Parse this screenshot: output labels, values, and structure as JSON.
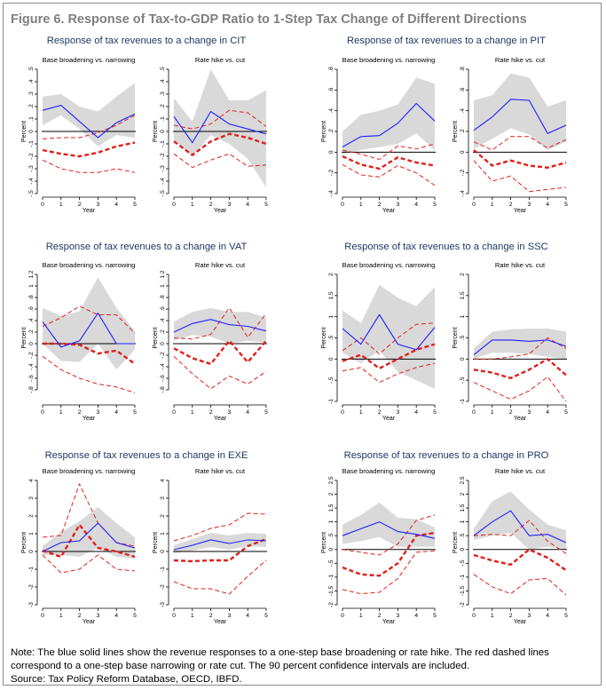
{
  "figure": {
    "title": "Figure 6. Response of Tax-to-GDP Ratio to 1-Step Tax Change of Different Directions",
    "note": "Note: The blue solid lines show the revenue responses to a one-step base broadening or rate hike. The red dashed lines correspond to a one-step base narrowing or rate cut. The 90 percent confidence intervals are included.",
    "source": "Source: Tax Policy Reform Database, OECD, IBFD."
  },
  "colors": {
    "blue_line": "#1f1fff",
    "red_line": "#e0201b",
    "ci_band": "#d9d9d9",
    "zero_line": "#000000",
    "title_text": "#1f3864"
  },
  "chart_data": [
    {
      "type": "line",
      "tax": "CIT",
      "title": "Response of tax revenues to a change in CIT",
      "subtitle": "Base broadening vs. narrowing",
      "xlabel": "Year",
      "ylabel": "Percent",
      "x": [
        0,
        1,
        2,
        3,
        4,
        5
      ],
      "ylim": [
        -0.5,
        0.5
      ],
      "yticks": [
        -0.5,
        -0.4,
        -0.3,
        -0.2,
        -0.1,
        0,
        0.1,
        0.2,
        0.3,
        0.4,
        0.5
      ],
      "yticklabels": [
        "-.5",
        "-.4",
        "-.3",
        "-.2",
        "-.1",
        "0",
        ".1",
        ".2",
        ".3",
        ".4",
        ".5"
      ],
      "blue": [
        0.17,
        0.21,
        0.08,
        -0.05,
        0.07,
        0.14
      ],
      "blue_ci": {
        "lower": [
          0.05,
          0.13,
          0.02,
          -0.12,
          -0.03,
          -0.05
        ],
        "upper": [
          0.28,
          0.3,
          0.2,
          0.16,
          0.28,
          0.39
        ]
      },
      "red": [
        -0.15,
        -0.18,
        -0.2,
        -0.17,
        -0.12,
        -0.09
      ],
      "red_ci": {
        "lower": [
          -0.23,
          -0.3,
          -0.33,
          -0.33,
          -0.3,
          -0.33
        ],
        "upper": [
          -0.06,
          -0.05,
          -0.05,
          -0.01,
          0.05,
          0.13
        ]
      }
    },
    {
      "type": "line",
      "tax": "CIT",
      "title": "",
      "subtitle": "Rate hike vs. cut",
      "xlabel": "Year",
      "ylabel": "Percent",
      "x": [
        0,
        1,
        2,
        3,
        4,
        5
      ],
      "ylim": [
        -0.5,
        0.5
      ],
      "yticks": [
        -0.5,
        -0.4,
        -0.3,
        -0.2,
        -0.1,
        0,
        0.1,
        0.2,
        0.3,
        0.4,
        0.5
      ],
      "yticklabels": [
        "-.5",
        "-.4",
        "-.3",
        "-.2",
        "-.1",
        "0",
        ".1",
        ".2",
        ".3",
        ".4",
        ".5"
      ],
      "blue": [
        0.12,
        -0.09,
        0.16,
        0.06,
        0.02,
        -0.02
      ],
      "blue_ci": {
        "lower": [
          -0.07,
          -0.2,
          -0.03,
          -0.1,
          -0.22,
          -0.45
        ],
        "upper": [
          0.27,
          0.08,
          0.5,
          0.25,
          0.25,
          0.33
        ]
      },
      "red": [
        -0.08,
        -0.19,
        -0.08,
        -0.02,
        -0.05,
        -0.1
      ],
      "red_ci": {
        "lower": [
          -0.18,
          -0.29,
          -0.23,
          -0.18,
          -0.28,
          -0.27
        ],
        "upper": [
          0.05,
          0.02,
          0.06,
          0.17,
          0.15,
          0.04
        ]
      }
    },
    {
      "type": "line",
      "tax": "PIT",
      "title": "Response of tax revenues to a change in PIT",
      "subtitle": "Base broadening vs. narrowing",
      "xlabel": "Year",
      "ylabel": "Percent",
      "x": [
        0,
        1,
        2,
        3,
        4,
        5
      ],
      "ylim": [
        -0.4,
        0.8
      ],
      "yticks": [
        -0.4,
        -0.2,
        0,
        0.2,
        0.4,
        0.6,
        0.8
      ],
      "yticklabels": [
        "-.4",
        "-.2",
        "0",
        ".2",
        ".4",
        ".6",
        ".8"
      ],
      "blue": [
        0.05,
        0.15,
        0.16,
        0.28,
        0.47,
        0.3
      ],
      "blue_ci": {
        "lower": [
          -0.02,
          0.02,
          0.05,
          0.08,
          0.18,
          0.02
        ],
        "upper": [
          0.2,
          0.36,
          0.4,
          0.46,
          0.72,
          0.66
        ]
      },
      "red": [
        -0.04,
        -0.12,
        -0.16,
        -0.05,
        -0.1,
        -0.13
      ],
      "red_ci": {
        "lower": [
          -0.12,
          -0.22,
          -0.24,
          -0.13,
          -0.2,
          -0.32
        ],
        "upper": [
          0.02,
          -0.02,
          -0.07,
          0.06,
          0.03,
          0.08
        ]
      }
    },
    {
      "type": "line",
      "tax": "PIT",
      "title": "",
      "subtitle": "Rate hike vs. cut",
      "xlabel": "Year",
      "ylabel": "Percent",
      "x": [
        0,
        1,
        2,
        3,
        4,
        5
      ],
      "ylim": [
        -0.4,
        0.8
      ],
      "yticks": [
        -0.4,
        -0.2,
        0,
        0.2,
        0.4,
        0.6,
        0.8
      ],
      "yticklabels": [
        "-.4",
        "-.2",
        "0",
        ".2",
        ".4",
        ".6",
        ".8"
      ],
      "blue": [
        0.21,
        0.34,
        0.51,
        0.5,
        0.18,
        0.26
      ],
      "blue_ci": {
        "lower": [
          0.03,
          0.13,
          0.23,
          0.17,
          0.02,
          0.1
        ],
        "upper": [
          0.5,
          0.55,
          0.76,
          0.72,
          0.44,
          0.5
        ]
      },
      "red": [
        0.02,
        -0.13,
        -0.08,
        -0.13,
        -0.15,
        -0.1
      ],
      "red_ci": {
        "lower": [
          -0.08,
          -0.28,
          -0.23,
          -0.38,
          -0.36,
          -0.34
        ],
        "upper": [
          0.1,
          0.02,
          0.15,
          0.15,
          0.04,
          0.12
        ]
      }
    },
    {
      "type": "line",
      "tax": "VAT",
      "title": "Response of tax revenues to a change in VAT",
      "subtitle": "Base broadening vs. narrowing",
      "xlabel": "Year",
      "ylabel": "Percent",
      "x": [
        0,
        1,
        2,
        3,
        4,
        5
      ],
      "ylim": [
        -1.0,
        1.2
      ],
      "yticks": [
        -0.8,
        -0.6,
        -0.4,
        -0.2,
        0,
        0.2,
        0.4,
        0.6,
        0.8,
        1.0,
        1.2
      ],
      "yticklabels": [
        "-.8",
        "-.6",
        "-.4",
        "-.2",
        "0",
        ".2",
        ".4",
        ".6",
        ".8",
        "1",
        "1.2"
      ],
      "blue": [
        0.38,
        -0.06,
        0.05,
        0.53,
        0.0,
        0.0
      ],
      "blue_ci": {
        "lower": [
          0.0,
          -0.3,
          -0.32,
          0.0,
          -0.45,
          -0.1
        ],
        "upper": [
          0.62,
          0.48,
          0.56,
          1.15,
          0.62,
          0.22
        ]
      },
      "red": [
        0.0,
        0.0,
        -0.02,
        -0.17,
        -0.12,
        -0.35
      ],
      "red_ci": {
        "lower": [
          -0.22,
          -0.45,
          -0.6,
          -0.7,
          -0.75,
          -0.85
        ],
        "upper": [
          0.3,
          0.45,
          0.65,
          0.5,
          0.5,
          0.18
        ]
      }
    },
    {
      "type": "line",
      "tax": "VAT",
      "title": "",
      "subtitle": "Rate hike vs. cut",
      "xlabel": "Year",
      "ylabel": "Percent",
      "x": [
        0,
        1,
        2,
        3,
        4,
        5
      ],
      "ylim": [
        -1.0,
        1.2
      ],
      "yticks": [
        -0.8,
        -0.6,
        -0.4,
        -0.2,
        0,
        0.2,
        0.4,
        0.6,
        0.8,
        1.0,
        1.2
      ],
      "yticklabels": [
        "-.8",
        "-.6",
        "-.4",
        "-.2",
        "0",
        ".2",
        ".4",
        ".6",
        ".8",
        "1",
        "1.2"
      ],
      "blue": [
        0.2,
        0.35,
        0.42,
        0.33,
        0.3,
        0.22
      ],
      "blue_ci": {
        "lower": [
          0.05,
          0.15,
          0.12,
          0.0,
          0.05,
          0.02
        ],
        "upper": [
          0.38,
          0.55,
          0.62,
          0.55,
          0.55,
          0.45
        ]
      },
      "red": [
        -0.08,
        -0.25,
        -0.35,
        0.05,
        -0.32,
        0.05
      ],
      "red_ci": {
        "lower": [
          -0.22,
          -0.52,
          -0.78,
          -0.56,
          -0.7,
          -0.48
        ],
        "upper": [
          0.1,
          0.08,
          0.16,
          0.62,
          0.11,
          0.52
        ]
      }
    },
    {
      "type": "line",
      "tax": "SSC",
      "title": "Response of tax revenues to a change in SSC",
      "subtitle": "Base broadening vs. narrowing",
      "xlabel": "Year",
      "ylabel": "Percent",
      "x": [
        0,
        1,
        2,
        3,
        4,
        5
      ],
      "ylim": [
        -1.0,
        2.0
      ],
      "yticks": [
        -1,
        -0.5,
        0,
        0.5,
        1,
        1.5,
        2
      ],
      "yticklabels": [
        "-1",
        "-.5",
        "0",
        ".5",
        "1",
        "1.5",
        "2"
      ],
      "blue": [
        0.72,
        0.35,
        1.05,
        0.35,
        0.22,
        0.75
      ],
      "blue_ci": {
        "lower": [
          0.15,
          -0.1,
          0.2,
          -0.3,
          -0.5,
          -0.7
        ],
        "upper": [
          1.15,
          0.85,
          1.75,
          1.45,
          1.25,
          1.7
        ]
      },
      "red": [
        -0.05,
        0.1,
        -0.22,
        0.0,
        0.22,
        0.35
      ],
      "red_ci": {
        "lower": [
          -0.28,
          -0.2,
          -0.55,
          -0.35,
          -0.2,
          -0.1
        ],
        "upper": [
          0.2,
          0.5,
          0.12,
          0.5,
          0.82,
          0.85
        ]
      }
    },
    {
      "type": "line",
      "tax": "SSC",
      "title": "",
      "subtitle": "Rate hike vs. cut",
      "xlabel": "Year",
      "ylabel": "Percent",
      "x": [
        0,
        1,
        2,
        3,
        4,
        5
      ],
      "ylim": [
        -1.0,
        2.0
      ],
      "yticks": [
        -1,
        -0.5,
        0,
        0.5,
        1,
        1.5,
        2
      ],
      "yticklabels": [
        "-1",
        "-.5",
        "0",
        ".5",
        "1",
        "1.5",
        "2"
      ],
      "blue": [
        0.1,
        0.45,
        0.45,
        0.42,
        0.45,
        0.3
      ],
      "blue_ci": {
        "lower": [
          0.0,
          0.15,
          0.15,
          0.12,
          0.05,
          0.0
        ],
        "upper": [
          0.25,
          0.65,
          0.7,
          0.72,
          0.72,
          0.65
        ]
      },
      "red": [
        -0.25,
        -0.32,
        -0.45,
        -0.25,
        0.0,
        -0.38
      ],
      "red_ci": {
        "lower": [
          -0.55,
          -0.75,
          -0.95,
          -0.75,
          -0.42,
          -1.0
        ],
        "upper": [
          0.0,
          0.0,
          0.05,
          0.12,
          0.5,
          0.25
        ]
      }
    },
    {
      "type": "line",
      "tax": "EXE",
      "title": "Response of tax revenues to a change in EXE",
      "subtitle": "Base broadening vs. narrowing",
      "xlabel": "Year",
      "ylabel": "Percent",
      "x": [
        0,
        1,
        2,
        3,
        4,
        5
      ],
      "ylim": [
        -3,
        4
      ],
      "yticks": [
        -3,
        -2,
        -1,
        0,
        1,
        2,
        3,
        4
      ],
      "yticklabels": [
        "-3",
        "-2",
        "-1",
        "0",
        "1",
        "2",
        "3",
        "4"
      ],
      "blue": [
        0.0,
        0.5,
        0.6,
        1.6,
        0.5,
        0.2
      ],
      "blue_ci": {
        "lower": [
          -0.2,
          -0.2,
          -0.3,
          0.2,
          -0.3,
          -0.4
        ],
        "upper": [
          0.3,
          1.1,
          1.7,
          2.5,
          1.6,
          0.8
        ]
      },
      "red": [
        0.05,
        -0.3,
        1.5,
        0.2,
        0.0,
        -0.3
      ],
      "red_ci": {
        "lower": [
          -0.2,
          -1.2,
          -1.0,
          -0.2,
          -1.0,
          -1.1
        ],
        "upper": [
          0.8,
          0.9,
          3.8,
          1.6,
          0.5,
          0.3
        ]
      }
    },
    {
      "type": "line",
      "tax": "EXE",
      "title": "",
      "subtitle": "Rate hike vs. cut",
      "xlabel": "Year",
      "ylabel": "Percent",
      "x": [
        0,
        1,
        2,
        3,
        4,
        5
      ],
      "ylim": [
        -3,
        4
      ],
      "yticks": [
        -3,
        -2,
        -1,
        0,
        1,
        2,
        3,
        4
      ],
      "yticklabels": [
        "-3",
        "-2",
        "-1",
        "0",
        "1",
        "2",
        "3",
        "4"
      ],
      "blue": [
        0.1,
        0.35,
        0.65,
        0.45,
        0.65,
        0.6
      ],
      "blue_ci": {
        "lower": [
          -0.1,
          0.05,
          0.25,
          0.1,
          0.3,
          0.25
        ],
        "upper": [
          0.35,
          0.7,
          1.05,
          0.9,
          1.05,
          1.0
        ]
      },
      "red": [
        -0.5,
        -0.55,
        -0.5,
        -0.5,
        0.3,
        0.7
      ],
      "red_ci": {
        "lower": [
          -1.7,
          -2.1,
          -2.1,
          -2.4,
          -1.4,
          -0.5
        ],
        "upper": [
          0.6,
          0.9,
          1.3,
          1.5,
          2.15,
          2.1
        ]
      }
    },
    {
      "type": "line",
      "tax": "PRO",
      "title": "Response of tax revenues to a change in PRO",
      "subtitle": "Base broadening vs. narrowing",
      "xlabel": "Year",
      "ylabel": "Percent",
      "x": [
        0,
        1,
        2,
        3,
        4,
        5
      ],
      "ylim": [
        -2.0,
        2.5
      ],
      "yticks": [
        -2,
        -1.5,
        -1,
        -0.5,
        0,
        0.5,
        1,
        1.5,
        2,
        2.5
      ],
      "yticklabels": [
        "-2",
        "-1.5",
        "-1",
        "-.5",
        "0",
        ".5",
        "1",
        "1.5",
        "2",
        "2.5"
      ],
      "blue": [
        0.5,
        0.75,
        1.0,
        0.65,
        0.55,
        0.4
      ],
      "blue_ci": {
        "lower": [
          0.2,
          0.3,
          0.45,
          0.1,
          0.1,
          0.1
        ],
        "upper": [
          0.9,
          1.25,
          1.7,
          1.15,
          1.1,
          0.8
        ]
      },
      "red": [
        -0.65,
        -0.9,
        -0.95,
        -0.5,
        0.5,
        0.6
      ],
      "red_ci": {
        "lower": [
          -1.45,
          -1.6,
          -1.55,
          -1.05,
          -0.1,
          -0.05
        ],
        "upper": [
          0.0,
          -0.1,
          -0.2,
          0.2,
          1.05,
          1.25
        ]
      }
    },
    {
      "type": "line",
      "tax": "PRO",
      "title": "",
      "subtitle": "Rate hike vs. cut",
      "xlabel": "Year",
      "ylabel": "Percent",
      "x": [
        0,
        1,
        2,
        3,
        4,
        5
      ],
      "ylim": [
        -2.0,
        2.5
      ],
      "yticks": [
        -2,
        -1.5,
        -1,
        -0.5,
        0,
        0.5,
        1,
        1.5,
        2,
        2.5
      ],
      "yticklabels": [
        "-2",
        "-1.5",
        "-1",
        "-.5",
        "0",
        ".5",
        "1",
        "1.5",
        "2",
        "2.5"
      ],
      "blue": [
        0.5,
        1.0,
        1.4,
        0.5,
        0.55,
        0.25
      ],
      "blue_ci": {
        "lower": [
          0.35,
          0.5,
          0.6,
          0.0,
          0.1,
          0.0
        ],
        "upper": [
          0.75,
          1.75,
          2.1,
          1.45,
          0.9,
          0.7
        ]
      },
      "red": [
        -0.2,
        -0.4,
        -0.55,
        0.0,
        -0.3,
        -0.75
      ],
      "red_ci": {
        "lower": [
          -0.9,
          -1.35,
          -1.6,
          -1.1,
          -1.05,
          -1.65
        ],
        "upper": [
          0.5,
          0.55,
          0.5,
          1.05,
          0.3,
          -0.15
        ]
      }
    }
  ]
}
